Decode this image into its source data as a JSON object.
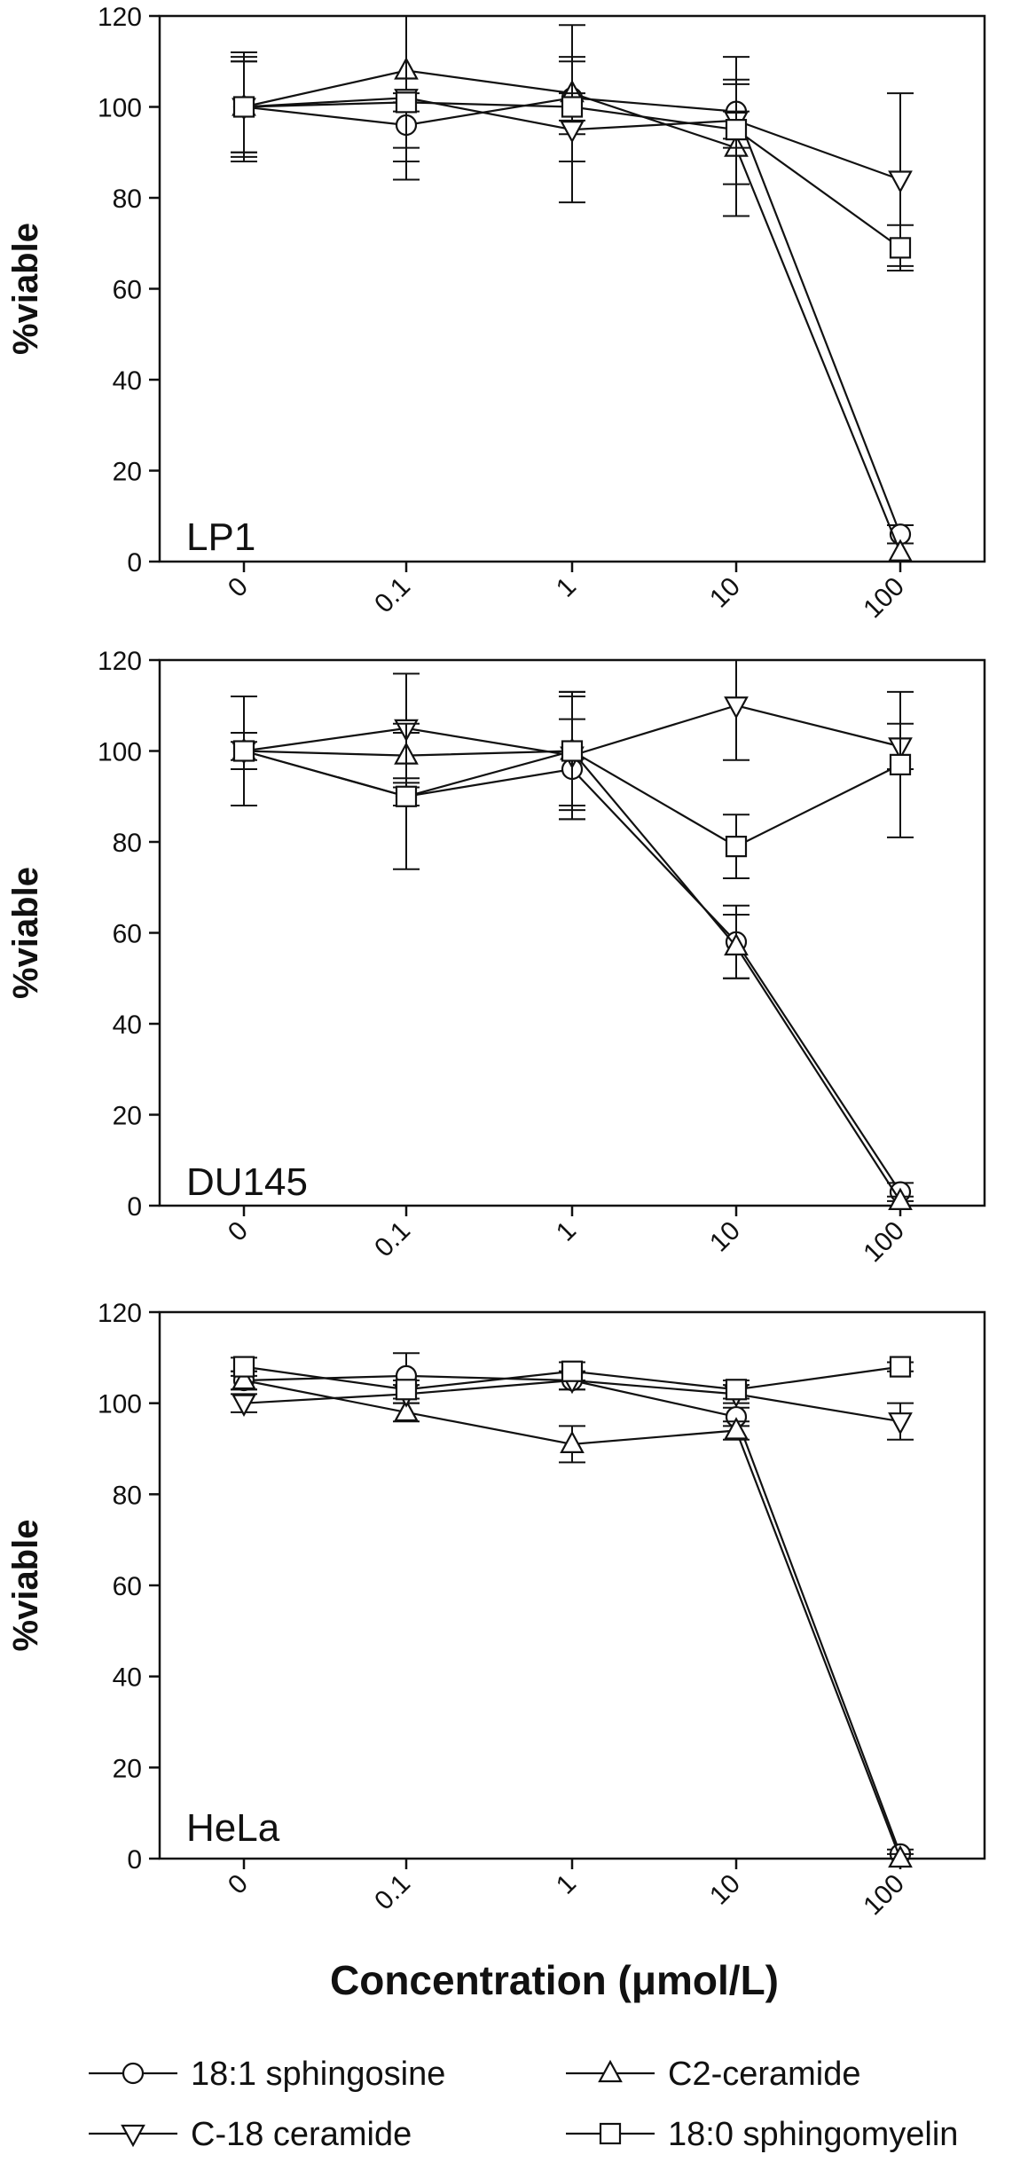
{
  "x_categories": [
    "0",
    "0.1",
    "1",
    "10",
    "100"
  ],
  "x_axis_title": "Concentration (μmol/L)",
  "legend": [
    {
      "name": "18:1 sphingosine",
      "marker": "circle"
    },
    {
      "name": "C2-ceramide",
      "marker": "triangle-up"
    },
    {
      "name": "C-18 ceramide",
      "marker": "triangle-down"
    },
    {
      "name": "18:0 sphingomyelin",
      "marker": "square"
    }
  ],
  "chart_data": [
    {
      "type": "line",
      "panel_label": "LP1",
      "ylabel": "%viable",
      "ylim": [
        0,
        120
      ],
      "yticks": [
        0,
        20,
        40,
        60,
        80,
        100,
        120
      ],
      "categories": [
        "0",
        "0.1",
        "1",
        "10",
        "100"
      ],
      "series": [
        {
          "name": "18:1 sphingosine",
          "marker": "circle",
          "values": [
            100,
            96,
            102,
            99,
            6
          ],
          "errors": [
            10,
            5,
            8,
            6,
            2
          ]
        },
        {
          "name": "C2-ceramide",
          "marker": "triangle-up",
          "values": [
            100,
            108,
            103,
            91,
            2
          ],
          "errors": [
            11,
            20,
            15,
            15,
            2
          ]
        },
        {
          "name": "C-18 ceramide",
          "marker": "triangle-down",
          "values": [
            100,
            102,
            95,
            97,
            84
          ],
          "errors": [
            12,
            18,
            16,
            14,
            19
          ]
        },
        {
          "name": "18:0 sphingomyelin",
          "marker": "square",
          "values": [
            100,
            101,
            100,
            95,
            69
          ],
          "errors": [
            10,
            2,
            3,
            4,
            5
          ]
        }
      ]
    },
    {
      "type": "line",
      "panel_label": "DU145",
      "ylabel": "%viable",
      "ylim": [
        0,
        120
      ],
      "yticks": [
        0,
        20,
        40,
        60,
        80,
        100,
        120
      ],
      "categories": [
        "0",
        "0.1",
        "1",
        "10",
        "100"
      ],
      "series": [
        {
          "name": "18:1 sphingosine",
          "marker": "circle",
          "values": [
            100,
            90,
            96,
            58,
            3
          ],
          "errors": [
            4,
            2,
            11,
            8,
            2
          ]
        },
        {
          "name": "C2-ceramide",
          "marker": "triangle-up",
          "values": [
            100,
            99,
            100,
            57,
            1
          ],
          "errors": [
            12,
            5,
            13,
            7,
            1
          ]
        },
        {
          "name": "C-18 ceramide",
          "marker": "triangle-down",
          "values": [
            100,
            105,
            99,
            110,
            101
          ],
          "errors": [
            12,
            12,
            14,
            12,
            5
          ]
        },
        {
          "name": "18:0 sphingomyelin",
          "marker": "square",
          "values": [
            100,
            90,
            100,
            79,
            97
          ],
          "errors": [
            2,
            16,
            12,
            7,
            16
          ]
        }
      ]
    },
    {
      "type": "line",
      "panel_label": "HeLa",
      "ylabel": "%viable",
      "ylim": [
        0,
        120
      ],
      "yticks": [
        0,
        20,
        40,
        60,
        80,
        100,
        120
      ],
      "categories": [
        "0",
        "0.1",
        "1",
        "10",
        "100"
      ],
      "series": [
        {
          "name": "18:1 sphingosine",
          "marker": "circle",
          "values": [
            105,
            106,
            105,
            97,
            1
          ],
          "errors": [
            2,
            5,
            2,
            2,
            1
          ]
        },
        {
          "name": "C2-ceramide",
          "marker": "triangle-up",
          "values": [
            105,
            98,
            91,
            94,
            0
          ],
          "errors": [
            2,
            2,
            4,
            2,
            1
          ]
        },
        {
          "name": "C-18 ceramide",
          "marker": "triangle-down",
          "values": [
            100,
            102,
            105,
            102,
            96
          ],
          "errors": [
            2,
            2,
            2,
            2,
            4
          ]
        },
        {
          "name": "18:0 sphingomyelin",
          "marker": "square",
          "values": [
            108,
            103,
            107,
            103,
            108
          ],
          "errors": [
            2,
            2,
            2,
            2,
            1
          ]
        }
      ]
    }
  ]
}
